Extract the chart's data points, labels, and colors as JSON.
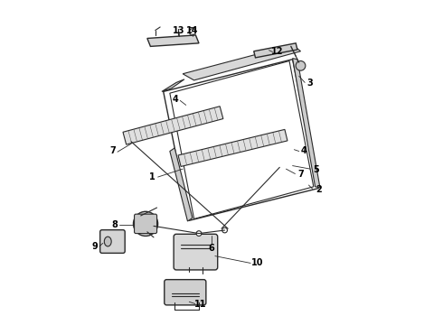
{
  "title": "",
  "background_color": "#ffffff",
  "line_color": "#2a2a2a",
  "label_color": "#000000",
  "fig_width": 4.9,
  "fig_height": 3.6,
  "dpi": 100
}
